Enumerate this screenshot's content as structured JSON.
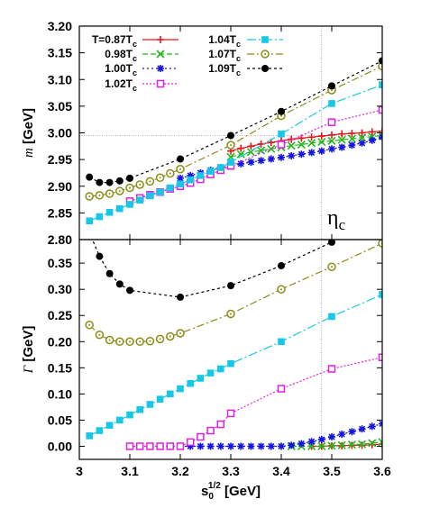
{
  "chart_data": [
    {
      "panel": "top",
      "type": "line",
      "ylabel_symbol": "m",
      "ylabel_unit": "[GeV]",
      "annotation": "η",
      "annotation_sub": "c",
      "xlim": [
        3.0,
        3.6
      ],
      "ylim": [
        2.8,
        3.2
      ],
      "yticks": [
        "2.80",
        "2.85",
        "2.90",
        "2.95",
        "3.00",
        "3.05",
        "3.10",
        "3.15",
        "3.20"
      ],
      "reference_lines": {
        "vertical_x": 3.48,
        "horizontal_y": 2.995
      },
      "series": [
        {
          "name_main": "T=0.87T",
          "name_sub": "c",
          "color": "#e8141c",
          "marker": "plus",
          "dash": "solid",
          "x": [
            3.3,
            3.32,
            3.34,
            3.36,
            3.38,
            3.4,
            3.42,
            3.44,
            3.46,
            3.48,
            3.5,
            3.52,
            3.54,
            3.56,
            3.58,
            3.6
          ],
          "y": [
            2.966,
            2.971,
            2.975,
            2.979,
            2.982,
            2.985,
            2.988,
            2.99,
            2.992,
            2.994,
            2.996,
            2.998,
            2.999,
            3.0,
            3.002,
            3.003
          ]
        },
        {
          "name_main": "0.98T",
          "name_sub": "c",
          "color": "#22b81a",
          "marker": "cross",
          "dash": "6,3",
          "x": [
            3.3,
            3.32,
            3.34,
            3.36,
            3.38,
            3.4,
            3.42,
            3.44,
            3.46,
            3.48,
            3.5,
            3.52,
            3.54,
            3.56,
            3.58,
            3.6
          ],
          "y": [
            2.955,
            2.96,
            2.964,
            2.967,
            2.97,
            2.973,
            2.976,
            2.978,
            2.981,
            2.983,
            2.985,
            2.987,
            2.989,
            2.991,
            2.993,
            2.995
          ]
        },
        {
          "name_main": "1.00T",
          "name_sub": "c",
          "color": "#1414e0",
          "marker": "star",
          "dash": "2,3",
          "x": [
            3.2,
            3.22,
            3.24,
            3.26,
            3.28,
            3.3,
            3.32,
            3.34,
            3.36,
            3.38,
            3.4,
            3.42,
            3.44,
            3.46,
            3.48,
            3.5,
            3.52,
            3.54,
            3.56,
            3.58,
            3.6
          ],
          "y": [
            2.915,
            2.92,
            2.925,
            2.93,
            2.935,
            2.938,
            2.942,
            2.945,
            2.948,
            2.951,
            2.954,
            2.957,
            2.96,
            2.963,
            2.966,
            2.97,
            2.973,
            2.977,
            2.981,
            2.986,
            2.992
          ]
        },
        {
          "name_main": "1.02T",
          "name_sub": "c",
          "color": "#e020e0",
          "marker": "opensquare",
          "dash": "2,2",
          "x": [
            3.1,
            3.12,
            3.14,
            3.16,
            3.18,
            3.2,
            3.22,
            3.24,
            3.26,
            3.28,
            3.3,
            3.4,
            3.5,
            3.6
          ],
          "y": [
            2.872,
            2.878,
            2.884,
            2.889,
            2.895,
            2.9,
            2.906,
            2.913,
            2.922,
            2.93,
            2.938,
            2.978,
            3.02,
            3.043
          ]
        },
        {
          "name_main": "1.04T",
          "name_sub": "c",
          "color": "#16c8e6",
          "marker": "filledsquare",
          "dash": "10,3,2,3",
          "x": [
            3.02,
            3.04,
            3.06,
            3.08,
            3.1,
            3.12,
            3.14,
            3.16,
            3.18,
            3.2,
            3.22,
            3.24,
            3.26,
            3.28,
            3.3,
            3.4,
            3.5,
            3.6
          ],
          "y": [
            2.835,
            2.843,
            2.851,
            2.858,
            2.866,
            2.874,
            2.882,
            2.889,
            2.897,
            2.904,
            2.912,
            2.92,
            2.928,
            2.935,
            2.945,
            2.998,
            3.055,
            3.09
          ]
        },
        {
          "name_main": "1.07T",
          "name_sub": "c",
          "color": "#8a8c14",
          "marker": "opencircle",
          "dash": "8,3,2,3",
          "x": [
            3.02,
            3.04,
            3.06,
            3.08,
            3.1,
            3.12,
            3.14,
            3.16,
            3.18,
            3.2,
            3.3,
            3.4,
            3.5,
            3.6
          ],
          "y": [
            2.881,
            2.883,
            2.886,
            2.891,
            2.897,
            2.903,
            2.909,
            2.916,
            2.924,
            2.932,
            2.977,
            3.032,
            3.08,
            3.125
          ]
        },
        {
          "name_main": "1.09T",
          "name_sub": "c",
          "color": "#000000",
          "marker": "filledcircle",
          "dash": "3,3",
          "x": [
            3.02,
            3.04,
            3.06,
            3.08,
            3.1,
            3.2,
            3.3,
            3.4,
            3.5,
            3.6
          ],
          "y": [
            2.917,
            2.907,
            2.907,
            2.91,
            2.915,
            2.951,
            2.995,
            3.04,
            3.088,
            3.135
          ]
        }
      ]
    },
    {
      "panel": "bottom",
      "type": "line",
      "ylabel_symbol": "Γ",
      "ylabel_unit": "[GeV]",
      "xlabel_main": "s",
      "xlabel_sub": "0",
      "xlabel_sup": "1/2",
      "xlabel_unit": "[GeV]",
      "xlim": [
        3.0,
        3.6
      ],
      "ylim": [
        -0.025,
        0.395
      ],
      "xticks": [
        "3",
        "3.1",
        "3.2",
        "3.3",
        "3.4",
        "3.5",
        "3.6"
      ],
      "yticks": [
        "0.00",
        "0.05",
        "0.10",
        "0.15",
        "0.20",
        "0.25",
        "0.30",
        "0.35"
      ],
      "reference_lines": {
        "vertical_x": 3.48
      },
      "series": [
        {
          "name_main": "T=0.87T",
          "name_sub": "c",
          "color": "#e8141c",
          "marker": "plus",
          "dash": "solid",
          "x": [
            3.46,
            3.48,
            3.5,
            3.52,
            3.54,
            3.56,
            3.58,
            3.6
          ],
          "y": [
            0.0,
            0.0,
            0.001,
            0.001,
            0.002,
            0.002,
            0.003,
            0.004
          ]
        },
        {
          "name_main": "0.98T",
          "name_sub": "c",
          "color": "#22b81a",
          "marker": "cross",
          "dash": "6,3",
          "x": [
            3.42,
            3.44,
            3.46,
            3.48,
            3.5,
            3.52,
            3.54,
            3.56,
            3.58,
            3.6
          ],
          "y": [
            0.0,
            0.0,
            0.0,
            0.0,
            0.001,
            0.002,
            0.003,
            0.004,
            0.006,
            0.008
          ]
        },
        {
          "name_main": "1.00T",
          "name_sub": "c",
          "color": "#1414e0",
          "marker": "star",
          "dash": "2,3",
          "x": [
            3.2,
            3.22,
            3.24,
            3.26,
            3.28,
            3.3,
            3.32,
            3.34,
            3.36,
            3.38,
            3.4,
            3.42,
            3.44,
            3.46,
            3.48,
            3.5,
            3.52,
            3.54,
            3.56,
            3.58,
            3.6
          ],
          "y": [
            0.0,
            0.0,
            0.0,
            0.0,
            0.0,
            0.0,
            0.0,
            0.0,
            0.0,
            0.0,
            0.0,
            0.002,
            0.005,
            0.009,
            0.013,
            0.018,
            0.023,
            0.028,
            0.033,
            0.038,
            0.043
          ]
        },
        {
          "name_main": "1.02T",
          "name_sub": "c",
          "color": "#e020e0",
          "marker": "opensquare",
          "dash": "2,2",
          "x": [
            3.1,
            3.12,
            3.14,
            3.16,
            3.18,
            3.2,
            3.22,
            3.24,
            3.26,
            3.28,
            3.3,
            3.4,
            3.5,
            3.6
          ],
          "y": [
            0.0,
            0.0,
            0.0,
            0.0,
            0.0,
            0.0,
            0.008,
            0.018,
            0.03,
            0.042,
            0.063,
            0.11,
            0.148,
            0.17
          ]
        },
        {
          "name_main": "1.04T",
          "name_sub": "c",
          "color": "#16c8e6",
          "marker": "filledsquare",
          "dash": "10,3,2,3",
          "x": [
            3.02,
            3.04,
            3.06,
            3.08,
            3.1,
            3.12,
            3.14,
            3.16,
            3.18,
            3.2,
            3.22,
            3.24,
            3.26,
            3.28,
            3.3,
            3.4,
            3.5,
            3.6
          ],
          "y": [
            0.02,
            0.03,
            0.04,
            0.05,
            0.06,
            0.07,
            0.08,
            0.09,
            0.1,
            0.11,
            0.12,
            0.13,
            0.14,
            0.148,
            0.158,
            0.2,
            0.248,
            0.29
          ]
        },
        {
          "name_main": "1.07T",
          "name_sub": "c",
          "color": "#8a8c14",
          "marker": "opencircle",
          "dash": "8,3,2,3",
          "x": [
            3.02,
            3.04,
            3.06,
            3.08,
            3.1,
            3.12,
            3.14,
            3.16,
            3.18,
            3.2,
            3.3,
            3.4,
            3.5,
            3.6
          ],
          "y": [
            0.232,
            0.213,
            0.203,
            0.2,
            0.2,
            0.2,
            0.201,
            0.205,
            0.21,
            0.216,
            0.253,
            0.3,
            0.343,
            0.388
          ]
        },
        {
          "name_main": "1.09T",
          "name_sub": "c",
          "color": "#000000",
          "marker": "filledcircle",
          "dash": "3,3",
          "x": [
            3.015,
            3.04,
            3.06,
            3.08,
            3.1,
            3.2,
            3.3,
            3.4,
            3.5
          ],
          "y": [
            0.42,
            0.363,
            0.33,
            0.31,
            0.298,
            0.285,
            0.307,
            0.345,
            0.39
          ]
        }
      ]
    }
  ]
}
